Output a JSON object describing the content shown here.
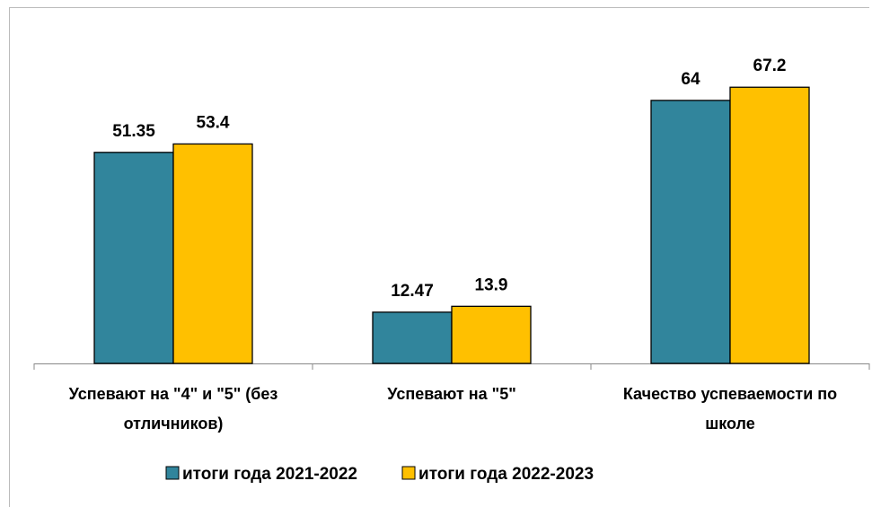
{
  "chart_data": {
    "type": "bar",
    "categories": [
      "Успевают на \"4\" и \"5\" (без отличников)",
      "Успевают на \"5\"",
      "Качество успеваемости по школе"
    ],
    "series": [
      {
        "name": "итоги года 2021-2022",
        "color": "#31859c",
        "values": [
          51.35,
          12.47,
          64
        ]
      },
      {
        "name": "итоги года 2022-2023",
        "color": "#ffc000",
        "values": [
          53.4,
          13.9,
          67.2
        ]
      }
    ],
    "legend": "bottom"
  }
}
